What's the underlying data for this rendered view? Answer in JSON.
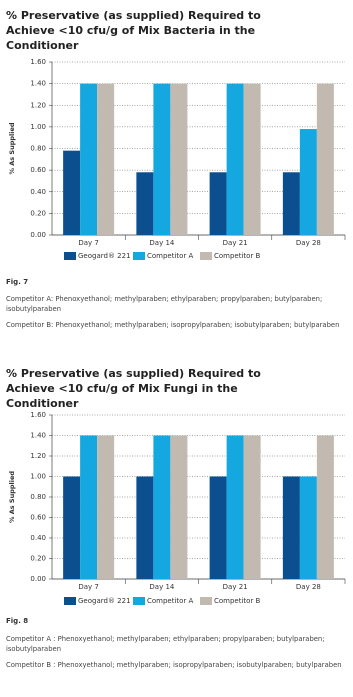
{
  "chart_data": [
    {
      "type": "bar",
      "title": "% Preservative (as supplied) Required to Achieve <10 cfu/g of Mix Bacteria in the Conditioner",
      "y_label": "% As Supplied",
      "categories": [
        "Day 7",
        "Day 14",
        "Day 21",
        "Day 28"
      ],
      "series": [
        {
          "name": "Geogard® 221",
          "color": "#0b4f8e",
          "values": [
            0.78,
            0.58,
            0.58,
            0.58
          ]
        },
        {
          "name": "Competitor A",
          "color": "#14a7e0",
          "values": [
            1.4,
            1.4,
            1.4,
            0.98
          ]
        },
        {
          "name": "Competitor B",
          "color": "#c2bab0",
          "values": [
            1.4,
            1.4,
            1.4,
            1.4
          ]
        }
      ],
      "ylim": [
        0,
        1.6
      ],
      "yticks": [
        {
          "value": 0,
          "label": "0.00"
        },
        {
          "value": 0.2,
          "label": "0.20"
        },
        {
          "value": 0.4,
          "label": "0.40"
        },
        {
          "value": 0.6,
          "label": "0.60"
        },
        {
          "value": 0.8,
          "label": "0.80"
        },
        {
          "value": 1.0,
          "label": "1.00"
        },
        {
          "value": 1.2,
          "label": "1.20"
        },
        {
          "value": 1.4,
          "label": "1.40"
        },
        {
          "value": 1.6,
          "label": "1.60"
        }
      ],
      "grid": true,
      "figure_label": "Fig. 7",
      "notes": [
        "Competitor A: Phenoxyethanol; methylparaben; ethylparaben; propylparaben; butylparaben; isobutylparaben",
        "Competitor B: Phenoxyethanol; methylparaben; isopropylparaben; isobutylparaben; butylparaben"
      ]
    },
    {
      "type": "bar",
      "title": "% Preservative (as supplied) Required to Achieve <10 cfu/g of Mix Fungi in the Conditioner",
      "y_label": "% As Supplied",
      "categories": [
        "Day 7",
        "Day 14",
        "Day 21",
        "Day 28"
      ],
      "series": [
        {
          "name": "Geogard® 221",
          "color": "#0b4f8e",
          "values": [
            1.0,
            1.0,
            1.0,
            1.0
          ]
        },
        {
          "name": "Competitor A",
          "color": "#14a7e0",
          "values": [
            1.4,
            1.4,
            1.4,
            1.0
          ]
        },
        {
          "name": "Competitor B",
          "color": "#c2bab0",
          "values": [
            1.4,
            1.4,
            1.4,
            1.4
          ]
        }
      ],
      "ylim": [
        0,
        1.6
      ],
      "yticks": [
        {
          "value": 0,
          "label": "0.00"
        },
        {
          "value": 0.2,
          "label": "0.20"
        },
        {
          "value": 0.4,
          "label": "0.40"
        },
        {
          "value": 0.6,
          "label": "0.60"
        },
        {
          "value": 0.8,
          "label": "0.80"
        },
        {
          "value": 1.0,
          "label": "1.00"
        },
        {
          "value": 1.2,
          "label": "1.20"
        },
        {
          "value": 1.4,
          "label": "1.40"
        },
        {
          "value": 1.6,
          "label": "1.60"
        }
      ],
      "grid": true,
      "figure_label": "Fig. 8",
      "notes": [
        "Competitor A : Phenoxyethanol; methylparaben; ethylparaben; propylparaben; butylparaben; isobutylparaben",
        "Competitor B : Phenoxyethanol; methylparaben; isopropylparaben; isobutylparaben; butylparaben"
      ]
    }
  ]
}
